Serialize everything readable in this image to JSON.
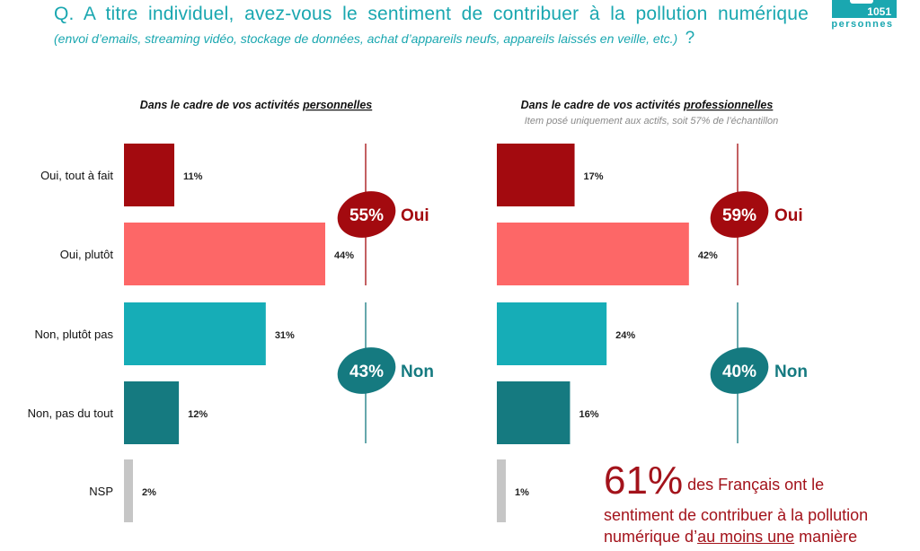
{
  "question": {
    "title": "Q. A titre individuel, avez-vous le sentiment de contribuer à la pollution numérique",
    "subtitle": "(envoi d’emails, streaming vidéo, stockage de données, achat d’appareils neufs, appareils laissés en veille, etc.)",
    "mark": "?"
  },
  "sample": {
    "count": "1051",
    "label": "personnes"
  },
  "chart_data": {
    "type": "bar",
    "orientation": "horizontal",
    "categories": [
      "Oui, tout à fait",
      "Oui, plutôt",
      "Non, plutôt pas",
      "Non, pas du tout",
      "NSP"
    ],
    "colors": [
      "#a30a0f",
      "#fd6767",
      "#16adb7",
      "#157a80",
      "#c6c6c6"
    ],
    "xlim": [
      0,
      50
    ],
    "panels": [
      {
        "title_prefix": "Dans le cadre de vos activités ",
        "title_emph": "personnelles",
        "note": "",
        "values": [
          11,
          44,
          31,
          12,
          2
        ],
        "labels": [
          "11%",
          "44%",
          "31%",
          "12%",
          "2%"
        ],
        "groups": [
          {
            "value": "55%",
            "label": "Oui",
            "color": "#a30a0f"
          },
          {
            "value": "43%",
            "label": "Non",
            "color": "#157a80"
          }
        ]
      },
      {
        "title_prefix": "Dans le cadre de vos activités ",
        "title_emph": "professionnelles",
        "note": "Item posé uniquement aux actifs, soit 57% de l’échantillon",
        "values": [
          17,
          42,
          24,
          16,
          1
        ],
        "labels": [
          "17%",
          "42%",
          "24%",
          "16%",
          "1%"
        ],
        "groups": [
          {
            "value": "59%",
            "label": "Oui",
            "color": "#a30a0f"
          },
          {
            "value": "40%",
            "label": "Non",
            "color": "#157a80"
          }
        ]
      }
    ]
  },
  "footer": {
    "big": "61%",
    "lead": " des Français ont le",
    "line2": "sentiment de contribuer à la pollution",
    "line3_pre": "numérique d’",
    "line3_emph": "au moins une",
    "line3_post": " manière"
  }
}
